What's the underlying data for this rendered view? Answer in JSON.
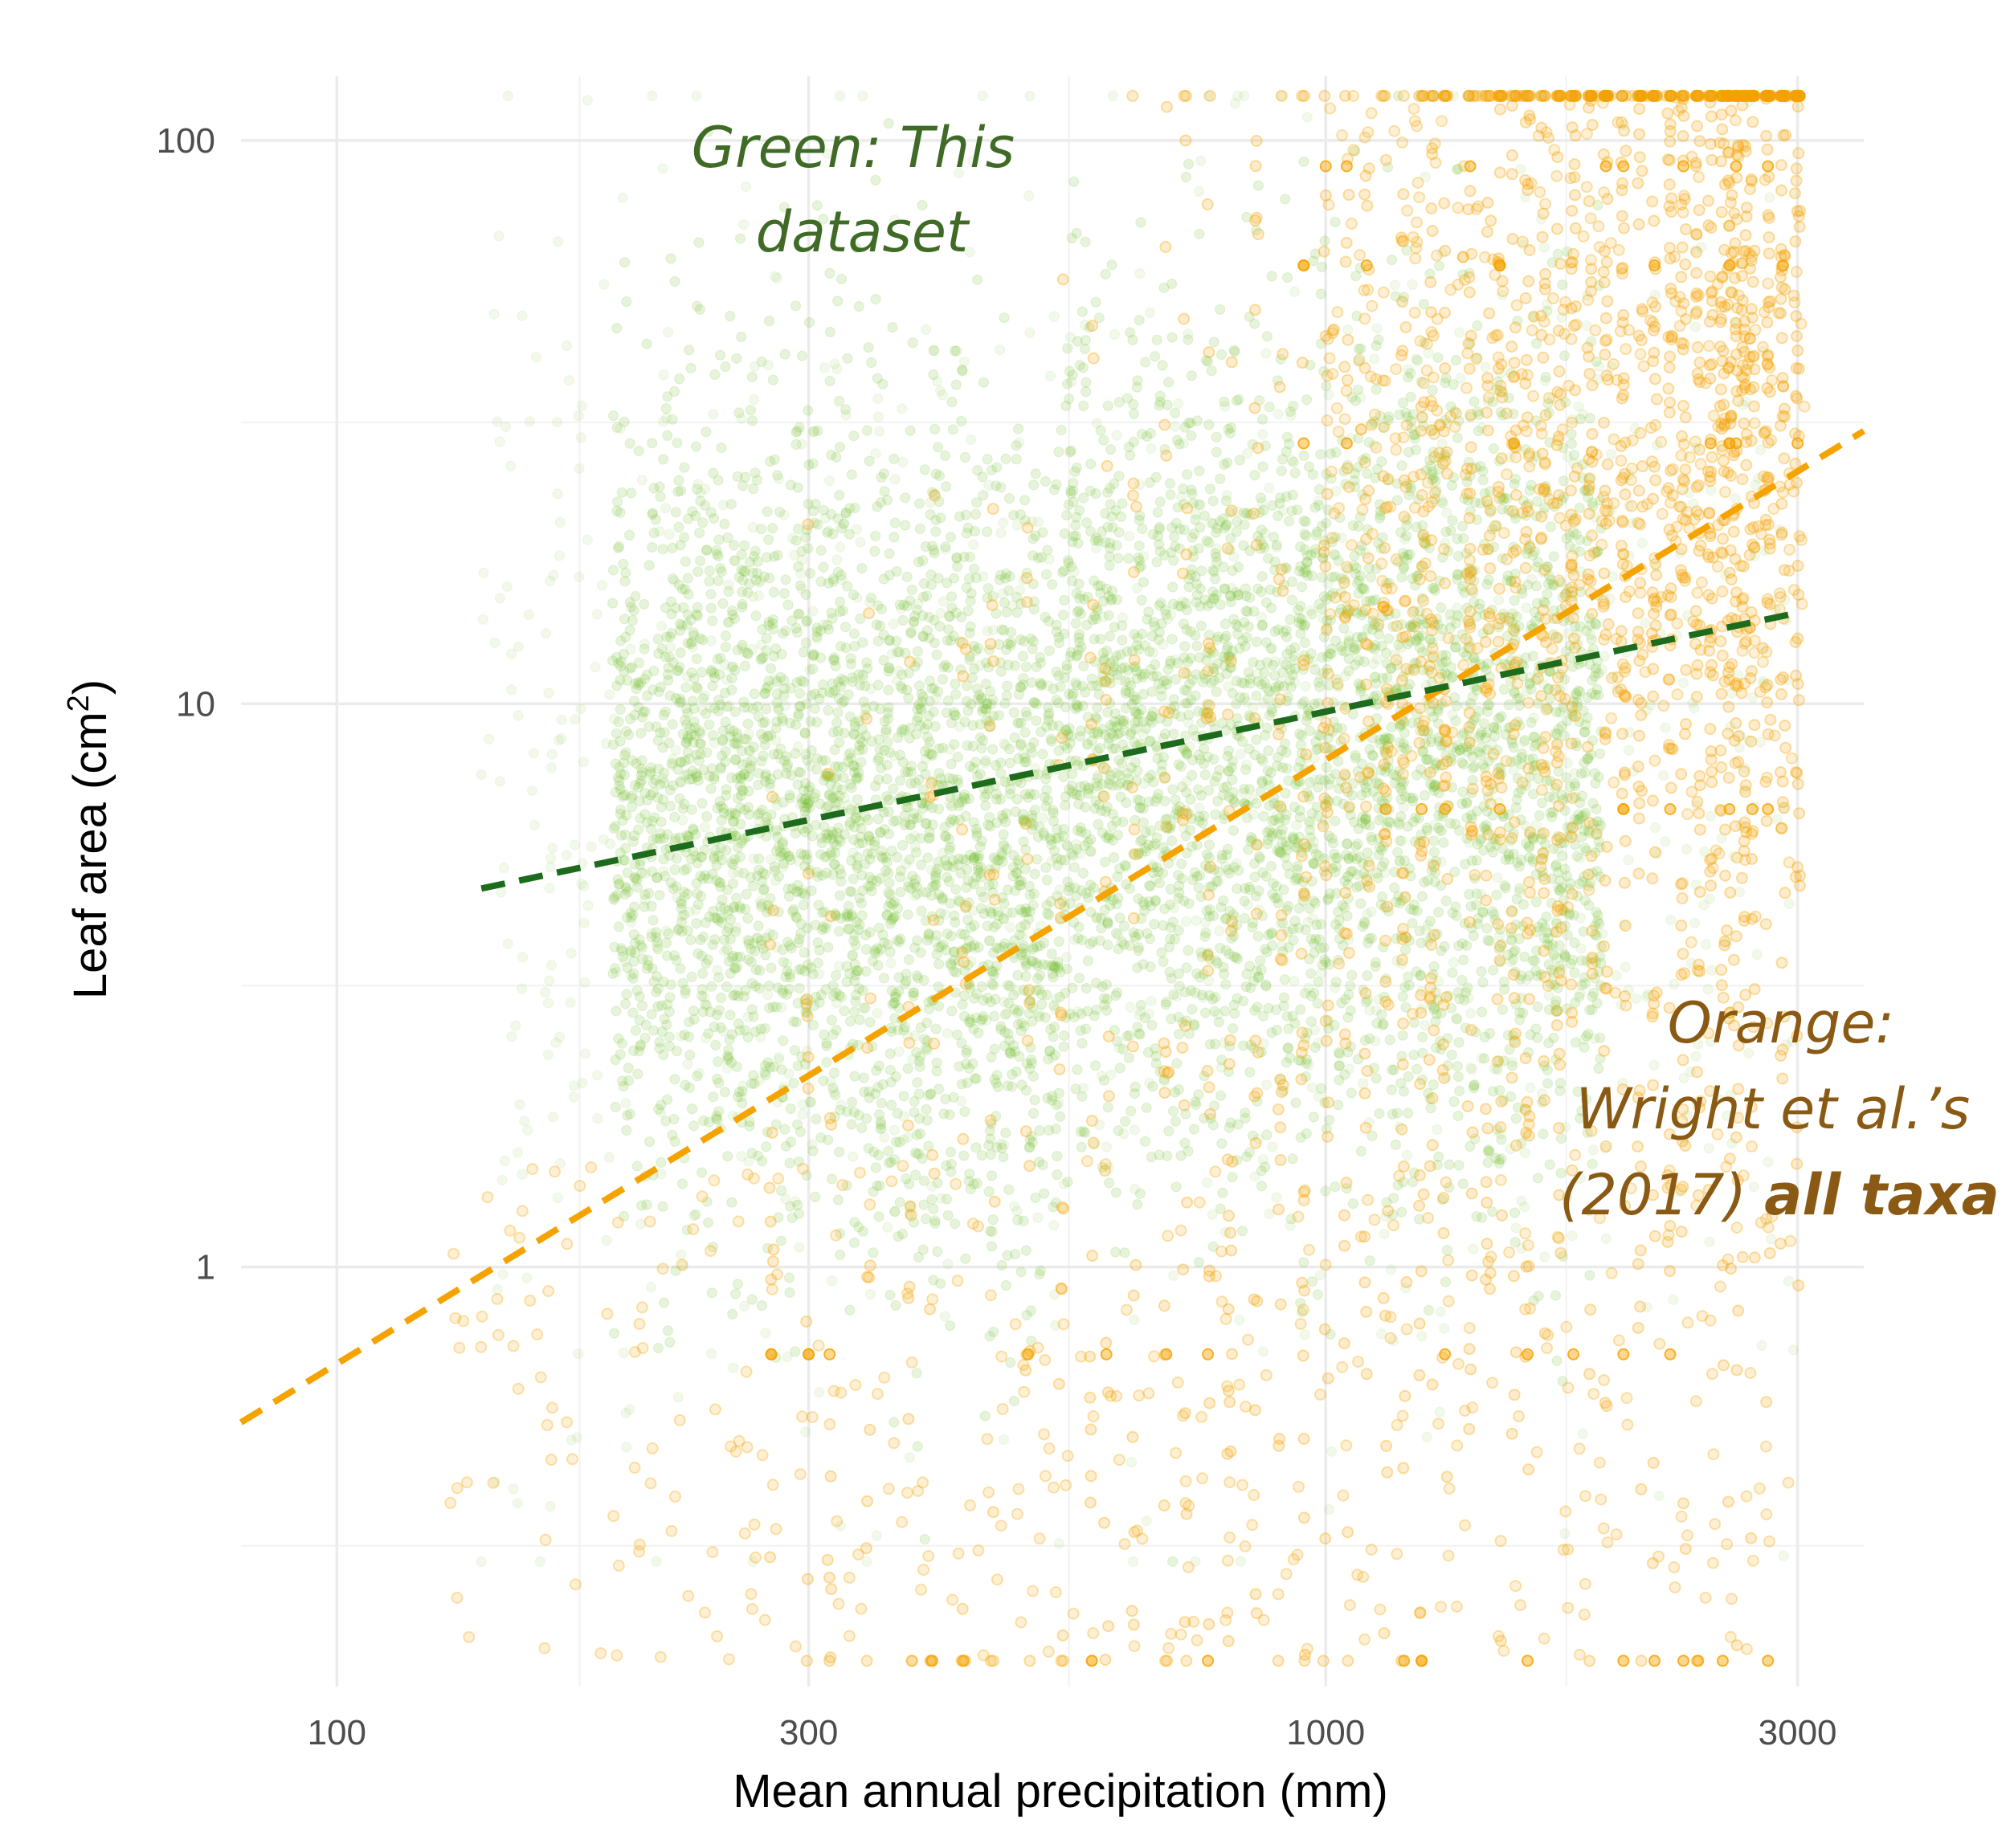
{
  "chart_data": {
    "type": "scatter",
    "xlabel": "Mean annual precipitation (mm)",
    "ylabel_main": "Leaf area (cm",
    "ylabel_sup": "2",
    "ylabel_close": ")",
    "x_scale": "log10",
    "y_scale": "log10",
    "xlim": [
      80,
      3500
    ],
    "ylim": [
      0.18,
      130
    ],
    "x_ticks": [
      {
        "value": 100,
        "label": "100"
      },
      {
        "value": 300,
        "label": "300"
      },
      {
        "value": 1000,
        "label": "1000"
      },
      {
        "value": 3000,
        "label": "3000"
      }
    ],
    "y_ticks": [
      {
        "value": 1,
        "label": "1"
      },
      {
        "value": 10,
        "label": "10"
      },
      {
        "value": 100,
        "label": "100"
      }
    ],
    "grid": true,
    "legend": "none",
    "colors": {
      "green_points": "#6ab820",
      "orange_points": "#f5a300",
      "green_fit": "#1d6b1d",
      "orange_fit": "#f5a300",
      "green_text": "#3f6b26",
      "orange_text": "#8a5a14"
    },
    "series": [
      {
        "color": "green",
        "type": "scatter",
        "x_range": [
          140,
          3000
        ],
        "y_range": [
          0.3,
          120
        ],
        "clusters": [
          {
            "x": [
              190,
              330
            ],
            "y_center": 6.5
          },
          {
            "x": [
              330,
              540
            ],
            "y_center": 5.5
          },
          {
            "x": [
              540,
              1300
            ],
            "y_center": 8.5
          },
          {
            "x": [
              1300,
              1900
            ],
            "y_center": 8
          }
        ]
      },
      {
        "color": "orange",
        "type": "scatter",
        "x_range": [
          130,
          3050
        ],
        "y_range": [
          0.2,
          120
        ],
        "banded_y": [
          0.2,
          0.7,
          6.5,
          29,
          60,
          90
        ]
      },
      {
        "color": "green",
        "type": "fit",
        "x": [
          140,
          3000
        ],
        "y": [
          4.7,
          14.5
        ]
      },
      {
        "color": "orange",
        "type": "fit",
        "x": [
          80,
          3500
        ],
        "y": [
          0.53,
          30.5
        ]
      }
    ],
    "annotations": [
      {
        "lines": [
          "Green: This",
          "dataset"
        ]
      },
      {
        "lines": [
          "Orange:",
          "Wright et al.’s",
          "(2017) "
        ],
        "bold_suffix": "all taxa"
      }
    ]
  }
}
